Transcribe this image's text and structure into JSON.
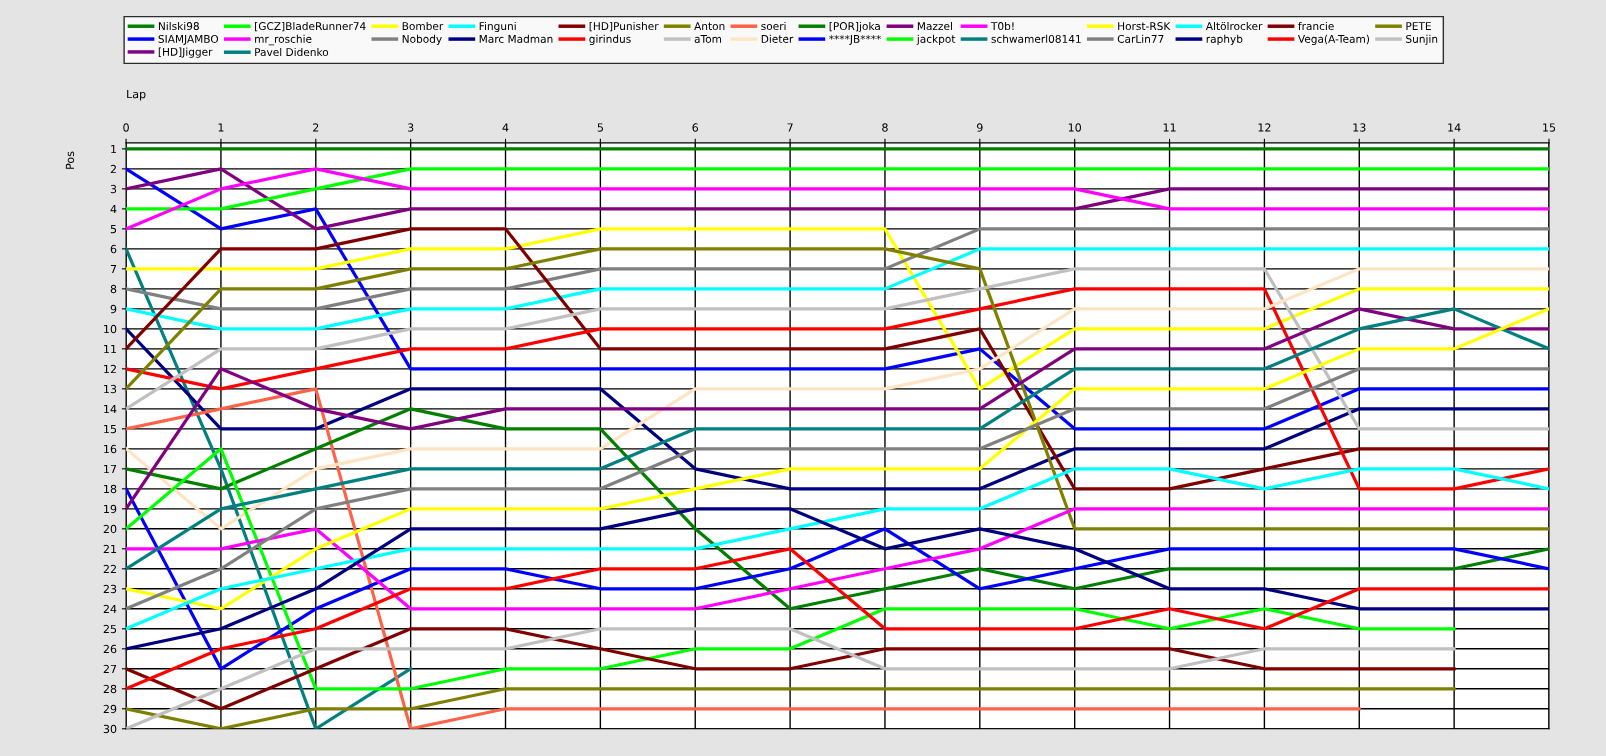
{
  "chart_data": {
    "type": "line",
    "xlabel": "Lap",
    "ylabel": "Pos",
    "x": [
      0,
      1,
      2,
      3,
      4,
      5,
      6,
      7,
      8,
      9,
      10,
      11,
      12,
      13,
      14,
      15
    ],
    "xlim": [
      0,
      15
    ],
    "xticks": [
      0,
      1,
      2,
      3,
      4,
      5,
      6,
      7,
      8,
      9,
      10,
      11,
      12,
      13,
      14,
      15
    ],
    "ylim": [
      30,
      0.7
    ],
    "yticks": [
      1,
      2,
      3,
      4,
      5,
      6,
      7,
      8,
      9,
      10,
      11,
      12,
      13,
      14,
      15,
      16,
      17,
      18,
      19,
      20,
      21,
      22,
      23,
      24,
      25,
      26,
      27,
      28,
      29,
      30
    ],
    "grid": true,
    "legend": "top",
    "marker": "none",
    "line_style": "solid",
    "series": [
      {
        "name": "Nilski98",
        "color": "#008000",
        "values": [
          1,
          1,
          1,
          1,
          1,
          1,
          1,
          1,
          1,
          1,
          1,
          1,
          1,
          1,
          1,
          1
        ]
      },
      {
        "name": "SIAMJAMBO",
        "color": "#0000ff",
        "values": [
          2,
          5,
          4,
          12,
          12,
          12,
          12,
          12,
          12,
          11,
          15,
          15,
          15,
          13,
          13,
          13
        ]
      },
      {
        "name": "[HD]Jigger",
        "color": "#800080",
        "values": [
          3,
          2,
          5,
          4,
          4,
          4,
          4,
          4,
          4,
          4,
          4,
          3,
          3,
          3,
          3,
          3
        ]
      },
      {
        "name": "[GCZ]BladeRunner74",
        "color": "#00ff00",
        "values": [
          4,
          4,
          3,
          2,
          2,
          2,
          2,
          2,
          2,
          2,
          2,
          2,
          2,
          2,
          2,
          2
        ]
      },
      {
        "name": "mr_roschie",
        "color": "#ff00ff",
        "values": [
          5,
          3,
          2,
          3,
          3,
          3,
          3,
          3,
          3,
          3,
          3,
          4,
          4,
          4,
          4,
          4
        ]
      },
      {
        "name": "Pavel Didenko",
        "color": "#008080",
        "values": [
          6,
          17,
          30,
          27,
          null,
          null,
          null,
          null,
          null,
          null,
          null,
          null,
          null,
          null,
          null,
          null
        ]
      },
      {
        "name": "Bomber",
        "color": "#ffff00",
        "values": [
          7,
          7,
          7,
          6,
          6,
          5,
          5,
          5,
          5,
          13,
          10,
          10,
          10,
          8,
          8,
          8
        ]
      },
      {
        "name": "Nobody",
        "color": "#808080",
        "values": [
          8,
          9,
          9,
          8,
          8,
          7,
          7,
          7,
          7,
          5,
          5,
          5,
          5,
          5,
          5,
          5
        ]
      },
      {
        "name": "Finguni",
        "color": "#00ffff",
        "values": [
          9,
          10,
          10,
          9,
          9,
          8,
          8,
          8,
          8,
          6,
          6,
          6,
          6,
          6,
          6,
          6
        ]
      },
      {
        "name": "Marc Madman",
        "color": "#000080",
        "values": [
          10,
          15,
          15,
          13,
          13,
          13,
          17,
          18,
          18,
          18,
          16,
          16,
          16,
          14,
          14,
          14
        ]
      },
      {
        "name": "[HD]Punisher",
        "color": "#800000",
        "values": [
          11,
          6,
          6,
          5,
          5,
          11,
          11,
          11,
          11,
          10,
          18,
          18,
          17,
          16,
          16,
          16
        ]
      },
      {
        "name": "girindus",
        "color": "#ff0000",
        "values": [
          12,
          13,
          12,
          11,
          11,
          10,
          10,
          10,
          10,
          9,
          8,
          8,
          8,
          18,
          18,
          17
        ]
      },
      {
        "name": "Anton",
        "color": "#808000",
        "values": [
          13,
          8,
          8,
          7,
          7,
          6,
          6,
          6,
          6,
          7,
          20,
          20,
          20,
          20,
          20,
          20
        ]
      },
      {
        "name": "aTom",
        "color": "#c0c0c0",
        "values": [
          14,
          11,
          11,
          10,
          10,
          9,
          9,
          9,
          9,
          8,
          7,
          7,
          7,
          15,
          15,
          15
        ]
      },
      {
        "name": "soeri",
        "color": "#ff6347",
        "values": [
          15,
          14,
          13,
          30,
          29,
          29,
          29,
          29,
          29,
          29,
          29,
          29,
          29,
          29,
          null,
          null
        ]
      },
      {
        "name": "Dieter",
        "color": "#ffe4c4",
        "values": [
          16,
          20,
          17,
          16,
          16,
          16,
          13,
          13,
          13,
          12,
          9,
          9,
          9,
          7,
          7,
          7
        ]
      },
      {
        "name": "[POR]joka",
        "color": "#008000",
        "values": [
          17,
          18,
          16,
          14,
          15,
          15,
          20,
          24,
          23,
          22,
          23,
          22,
          22,
          22,
          22,
          21
        ]
      },
      {
        "name": "****JB****",
        "color": "#0000ff",
        "values": [
          18,
          27,
          24,
          22,
          22,
          23,
          23,
          22,
          20,
          23,
          22,
          21,
          21,
          21,
          21,
          22
        ]
      },
      {
        "name": "Mazzel",
        "color": "#800080",
        "values": [
          19,
          12,
          14,
          15,
          14,
          14,
          14,
          14,
          14,
          14,
          11,
          11,
          11,
          9,
          10,
          10
        ]
      },
      {
        "name": "jackpot",
        "color": "#00ff00",
        "values": [
          20,
          16,
          28,
          28,
          27,
          27,
          26,
          26,
          24,
          24,
          24,
          25,
          24,
          25,
          25,
          null
        ]
      },
      {
        "name": "T0b!",
        "color": "#ff00ff",
        "values": [
          21,
          21,
          20,
          24,
          24,
          24,
          24,
          23,
          22,
          21,
          19,
          19,
          19,
          19,
          19,
          19
        ]
      },
      {
        "name": "schwamerl08141",
        "color": "#008080",
        "values": [
          22,
          19,
          18,
          17,
          17,
          17,
          15,
          15,
          15,
          15,
          12,
          12,
          12,
          10,
          9,
          11
        ]
      },
      {
        "name": "Horst-RSK",
        "color": "#ffff00",
        "values": [
          23,
          24,
          21,
          19,
          19,
          19,
          18,
          17,
          17,
          17,
          13,
          13,
          13,
          11,
          11,
          9
        ]
      },
      {
        "name": "CarLin77",
        "color": "#808080",
        "values": [
          24,
          22,
          19,
          18,
          18,
          18,
          16,
          16,
          16,
          16,
          14,
          14,
          14,
          12,
          12,
          12
        ]
      },
      {
        "name": "Altölrocker",
        "color": "#00ffff",
        "values": [
          25,
          23,
          22,
          21,
          21,
          21,
          21,
          20,
          19,
          19,
          17,
          17,
          18,
          17,
          17,
          18
        ]
      },
      {
        "name": "raphyb",
        "color": "#000080",
        "values": [
          26,
          25,
          23,
          20,
          20,
          20,
          19,
          19,
          21,
          20,
          21,
          23,
          23,
          24,
          24,
          24
        ]
      },
      {
        "name": "francie",
        "color": "#800000",
        "values": [
          27,
          29,
          27,
          25,
          25,
          26,
          27,
          27,
          26,
          26,
          26,
          26,
          27,
          27,
          27,
          null
        ]
      },
      {
        "name": "Vega(A-Team)",
        "color": "#ff0000",
        "values": [
          28,
          26,
          25,
          23,
          23,
          22,
          22,
          21,
          25,
          25,
          25,
          24,
          25,
          23,
          23,
          23
        ]
      },
      {
        "name": "PETE",
        "color": "#808000",
        "values": [
          29,
          30,
          29,
          29,
          28,
          28,
          28,
          28,
          28,
          28,
          28,
          28,
          28,
          28,
          28,
          null
        ]
      },
      {
        "name": "Sunjin",
        "color": "#c0c0c0",
        "values": [
          30,
          28,
          26,
          26,
          26,
          25,
          25,
          25,
          27,
          27,
          27,
          27,
          26,
          26,
          26,
          null
        ]
      }
    ]
  }
}
